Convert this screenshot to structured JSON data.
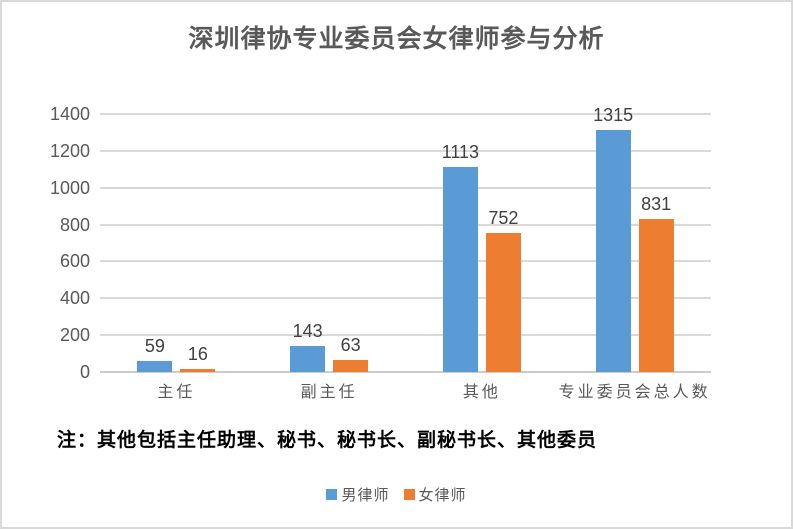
{
  "title": "深圳律协专业委员会女律师参与分析",
  "note": "注：其他包括主任助理、秘书、秘书长、副秘书长、其他委员",
  "colors": {
    "male_series": "#5B9BD5",
    "female_series": "#ED7D31",
    "gridline": "#D9D9D9",
    "axis_line": "#CCCCCC",
    "value_label_text": "#404040",
    "axis_text": "#595959",
    "title_text": "#595959",
    "note_text": "#000000"
  },
  "legend": {
    "items": [
      {
        "label": "男律师",
        "color": "#5B9BD5"
      },
      {
        "label": "女律师",
        "color": "#ED7D31"
      }
    ]
  },
  "chart_data": {
    "type": "bar",
    "title": "深圳律协专业委员会女律师参与分析",
    "categories": [
      "主任",
      "副主任",
      "其他",
      "专业委员会总人数"
    ],
    "series": [
      {
        "name": "男律师",
        "color": "#5B9BD5",
        "values": [
          59,
          143,
          1113,
          1315
        ]
      },
      {
        "name": "女律师",
        "color": "#ED7D31",
        "values": [
          16,
          63,
          752,
          831
        ]
      }
    ],
    "xlabel": "",
    "ylabel": "",
    "ylim": [
      0,
      1400
    ],
    "ytick_step": 200,
    "grid": true,
    "data_labels": true,
    "legend_position": "bottom",
    "annotation": "注：其他包括主任助理、秘书、秘书长、副秘书长、其他委员"
  }
}
